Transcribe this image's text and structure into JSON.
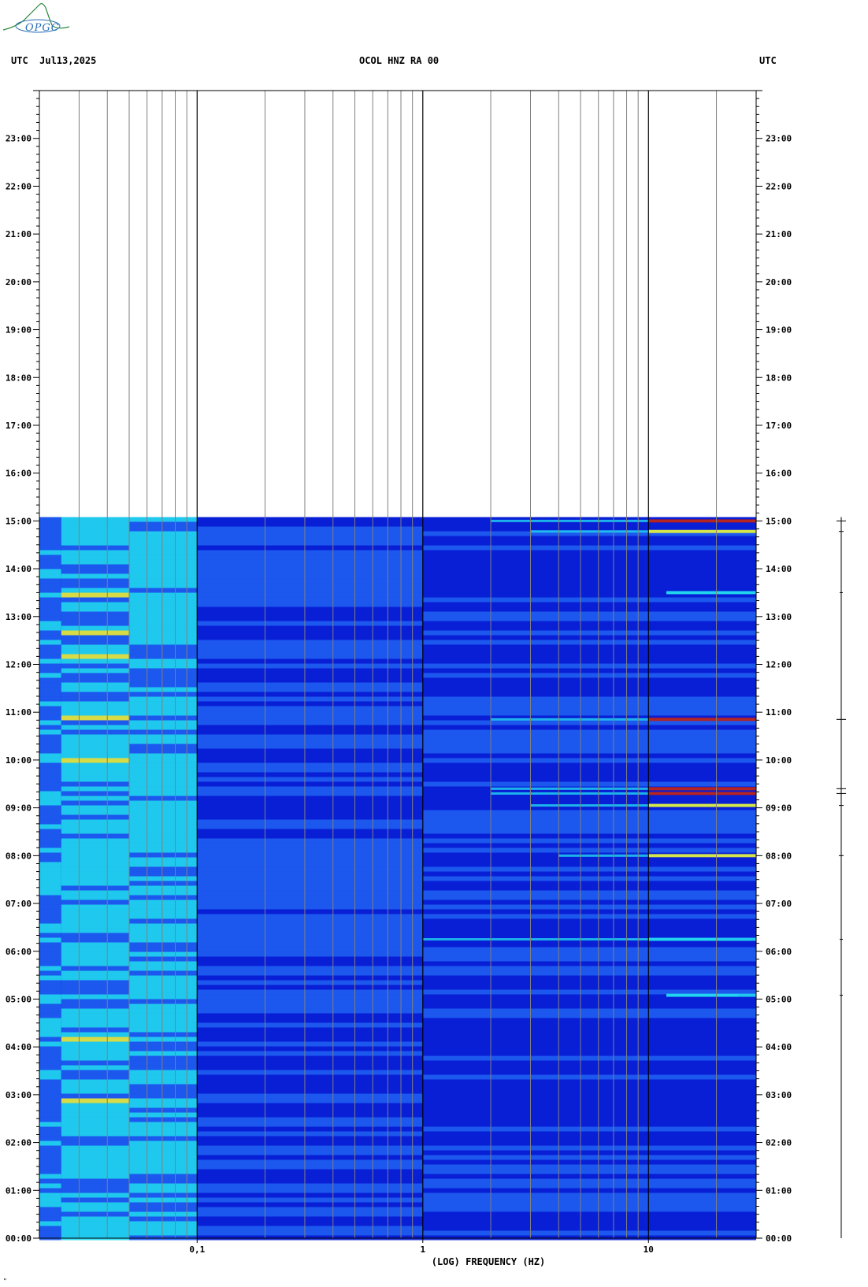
{
  "header": {
    "left": "UTC  Jul13,2025",
    "center": "OCOL HNZ RA 00",
    "right": "UTC"
  },
  "logo": {
    "text": "OPGC",
    "icon": "wave-logo-icon"
  },
  "footer_mark": "\"",
  "colors": {
    "low": "#0a1fd6",
    "mid": "#1e5cf0",
    "cyan": "#22d8f0",
    "yellow": "#e8ec3a",
    "red": "#c4160c",
    "grid_minor": "#808080",
    "grid_major": "#000000"
  },
  "chart_data": {
    "type": "heatmap",
    "title": "OCOL HNZ RA 00",
    "xlabel": "(LOG) FREQUENCY (HZ)",
    "ylabel": "UTC",
    "x_scale": "log",
    "xlim": [
      0.02,
      30
    ],
    "x_ticks": [
      {
        "value": 0.1,
        "label": "0,1"
      },
      {
        "value": 1,
        "label": "1"
      },
      {
        "value": 10,
        "label": "10"
      }
    ],
    "x_minor_grid": [
      0.03,
      0.04,
      0.05,
      0.06,
      0.07,
      0.08,
      0.09,
      0.2,
      0.3,
      0.4,
      0.5,
      0.6,
      0.7,
      0.8,
      0.9,
      2,
      3,
      4,
      5,
      6,
      7,
      8,
      9,
      20
    ],
    "ylim_hours": [
      0,
      24
    ],
    "y_ticks_left": [
      "00:00",
      "01:00",
      "02:00",
      "03:00",
      "04:00",
      "05:00",
      "06:00",
      "07:00",
      "08:00",
      "09:00",
      "10:00",
      "11:00",
      "12:00",
      "13:00",
      "14:00",
      "15:00",
      "16:00",
      "17:00",
      "18:00",
      "19:00",
      "20:00",
      "21:00",
      "22:00",
      "23:00"
    ],
    "y_ticks_right": [
      "00:00",
      "01:00",
      "02:00",
      "03:00",
      "04:00",
      "05:00",
      "06:00",
      "07:00",
      "08:00",
      "09:00",
      "10:00",
      "11:00",
      "12:00",
      "13:00",
      "14:00",
      "15:00",
      "16:00",
      "17:00",
      "18:00",
      "19:00",
      "20:00",
      "21:00",
      "22:00",
      "23:00"
    ],
    "data_coverage_hours": [
      0,
      15.08
    ],
    "energy_bands": [
      {
        "f_min": 0.02,
        "f_max": 0.025,
        "level": "mid"
      },
      {
        "f_min": 0.025,
        "f_max": 0.05,
        "level": "cyan"
      },
      {
        "f_min": 0.05,
        "f_max": 0.1,
        "level": "cyan-mid"
      },
      {
        "f_min": 0.1,
        "f_max": 1,
        "level": "mid-low"
      },
      {
        "f_min": 1,
        "f_max": 30,
        "level": "low"
      }
    ],
    "events_hours": [
      {
        "t": 15.0,
        "f_min": 2,
        "f_max": 30,
        "peak": "red"
      },
      {
        "t": 14.78,
        "f_min": 3,
        "f_max": 30,
        "peak": "yellow"
      },
      {
        "t": 13.5,
        "f_min": 12,
        "f_max": 30,
        "peak": "cyan"
      },
      {
        "t": 10.85,
        "f_min": 2,
        "f_max": 30,
        "peak": "red"
      },
      {
        "t": 9.4,
        "f_min": 2,
        "f_max": 30,
        "peak": "red"
      },
      {
        "t": 9.3,
        "f_min": 2,
        "f_max": 30,
        "peak": "red"
      },
      {
        "t": 9.05,
        "f_min": 3,
        "f_max": 30,
        "peak": "yellow"
      },
      {
        "t": 8.0,
        "f_min": 4,
        "f_max": 30,
        "peak": "yellow"
      },
      {
        "t": 6.25,
        "f_min": 1,
        "f_max": 20,
        "peak": "cyan"
      },
      {
        "t": 5.08,
        "f_min": 12,
        "f_max": 25,
        "peak": "cyan"
      }
    ]
  }
}
